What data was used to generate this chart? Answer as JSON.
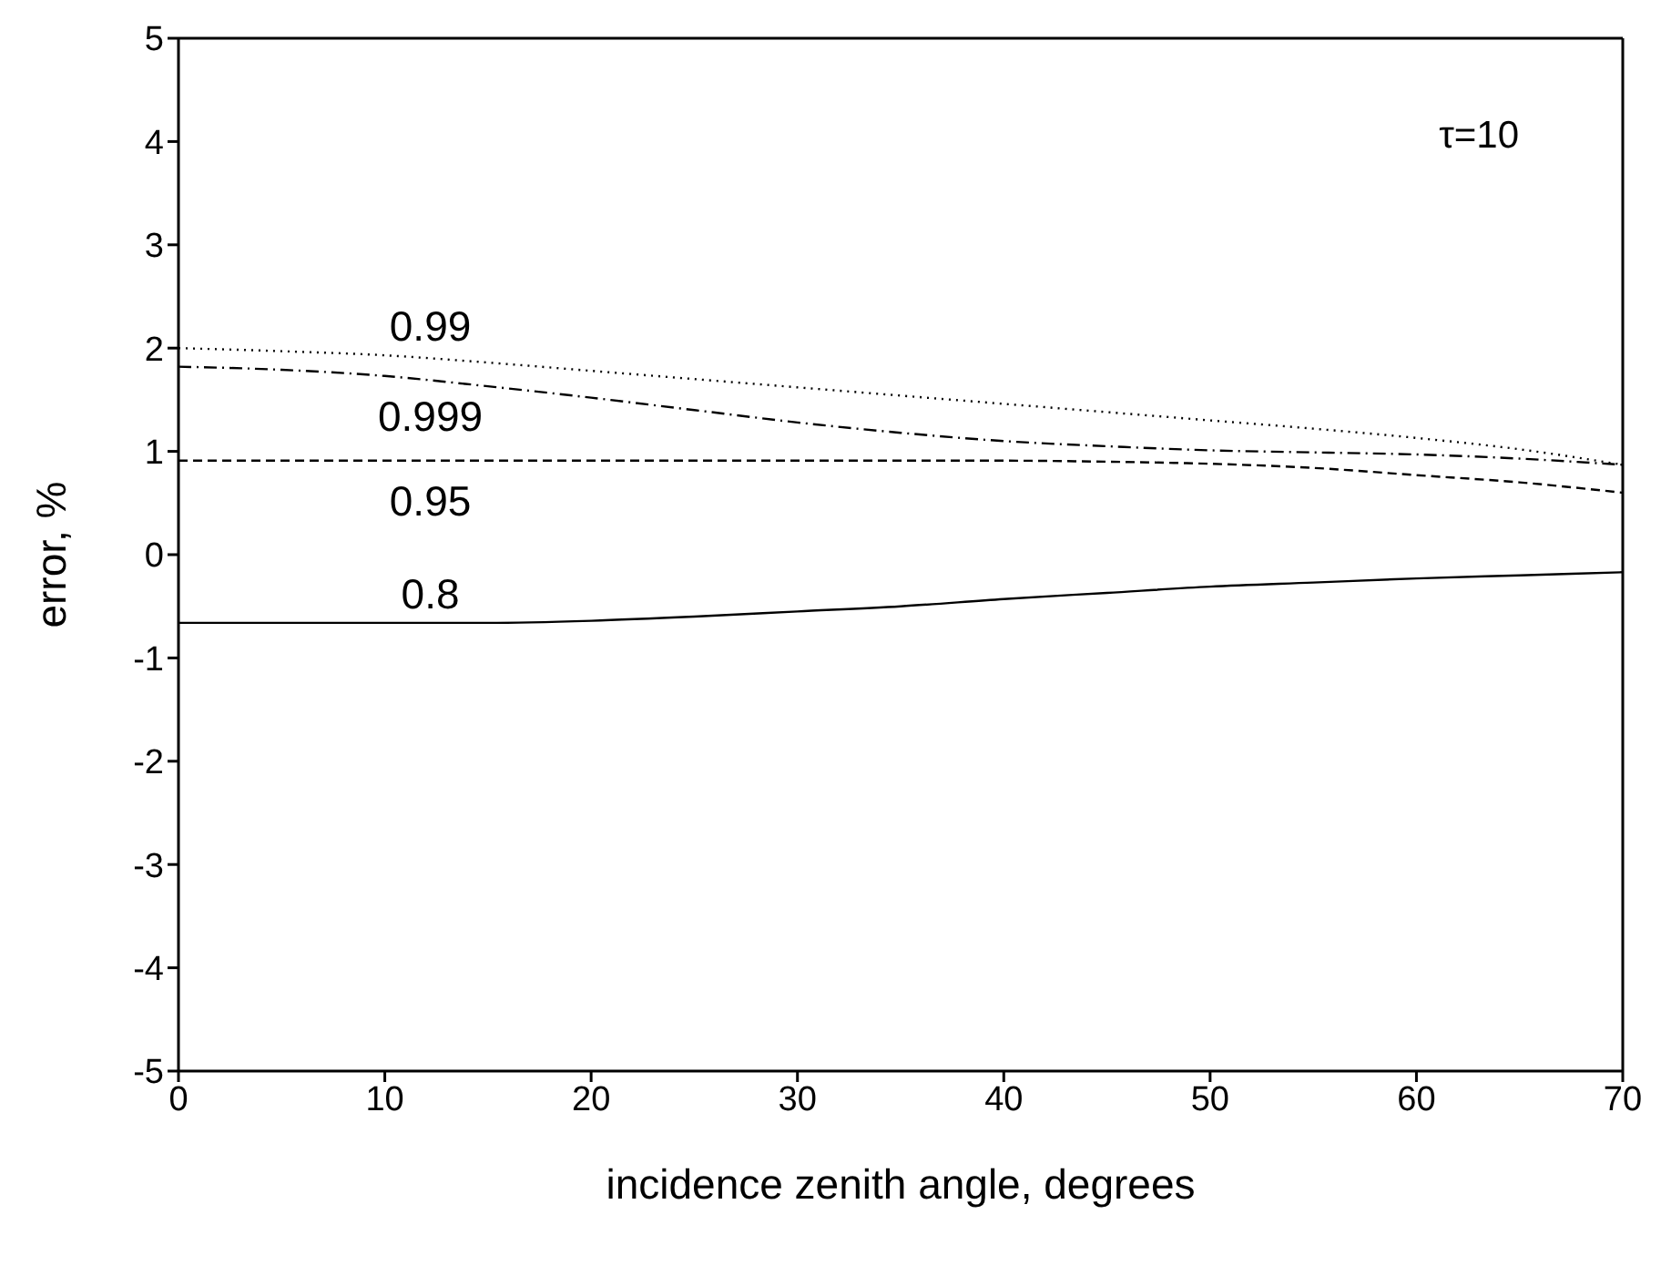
{
  "chart_data": {
    "type": "line",
    "xlabel": "incidence zenith angle, degrees",
    "ylabel": "error, %",
    "annotations": [
      "τ=10"
    ],
    "x": [
      0,
      5,
      10,
      15,
      20,
      25,
      30,
      35,
      40,
      45,
      50,
      55,
      60,
      65,
      70
    ],
    "series": [
      {
        "name": "0.99",
        "color": "#000000",
        "line_style": "dotted",
        "values": [
          2.0,
          1.97,
          1.93,
          1.86,
          1.78,
          1.7,
          1.62,
          1.54,
          1.46,
          1.38,
          1.3,
          1.22,
          1.13,
          1.02,
          0.87
        ]
      },
      {
        "name": "0.999",
        "color": "#000000",
        "line_style": "dashdot",
        "values": [
          1.82,
          1.79,
          1.73,
          1.63,
          1.52,
          1.4,
          1.28,
          1.18,
          1.1,
          1.05,
          1.01,
          0.99,
          0.97,
          0.93,
          0.87
        ]
      },
      {
        "name": "0.95",
        "color": "#000000",
        "line_style": "dashed",
        "values": [
          0.91,
          0.91,
          0.91,
          0.91,
          0.91,
          0.91,
          0.91,
          0.91,
          0.91,
          0.9,
          0.88,
          0.84,
          0.77,
          0.7,
          0.6
        ]
      },
      {
        "name": "0.8",
        "color": "#000000",
        "line_style": "solid",
        "values": [
          -0.66,
          -0.66,
          -0.66,
          -0.66,
          -0.64,
          -0.6,
          -0.55,
          -0.5,
          -0.43,
          -0.37,
          -0.31,
          -0.27,
          -0.23,
          -0.2,
          -0.17
        ]
      }
    ],
    "xlim": [
      0,
      70
    ],
    "xticks": [
      0,
      10,
      20,
      30,
      40,
      50,
      60,
      70
    ],
    "ylim": [
      -5,
      5
    ],
    "yticks": [
      -5,
      -4,
      -3,
      -2,
      -1,
      0,
      1,
      2,
      3,
      4,
      5
    ],
    "grid": false,
    "marker": "none"
  }
}
